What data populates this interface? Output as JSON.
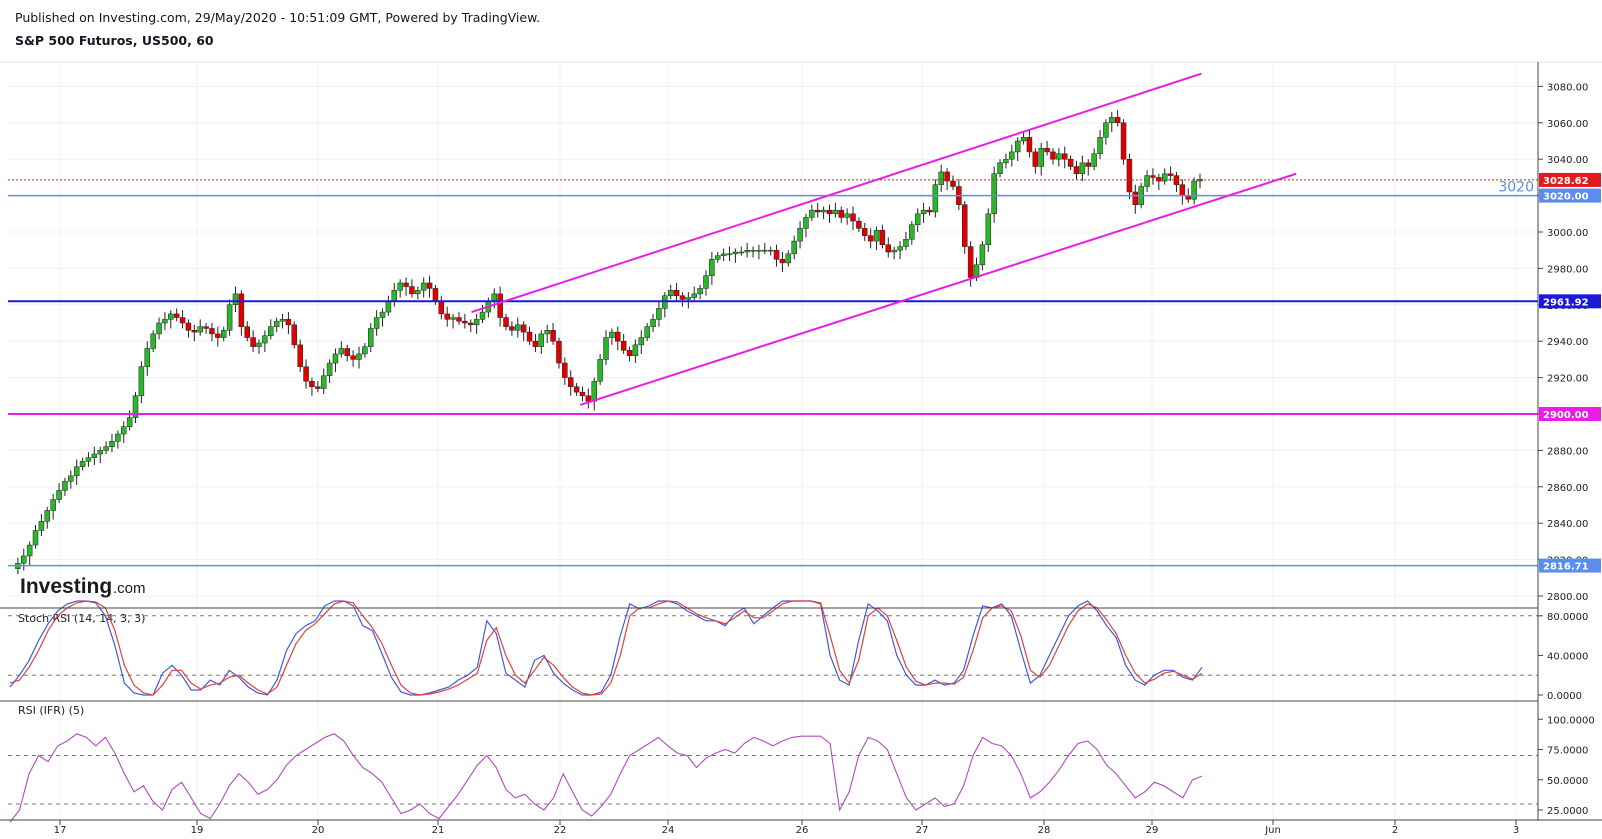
{
  "header": {
    "published": "Published on Investing.com, 29/May/2020 - 10:51:09 GMT, Powered by TradingView.",
    "symbol": "S&P 500 Futuros, US500, 60"
  },
  "logo": {
    "brand": "Investing",
    "suffix": ".com"
  },
  "chart_data": [
    {
      "type": "candlestick",
      "name": "price",
      "x_ticks": [
        "17",
        "19",
        "20",
        "21",
        "22",
        "24",
        "26",
        "27",
        "28",
        "29",
        "Jun",
        "2",
        "3"
      ],
      "y_ticks": [
        "3080.00",
        "3060.00",
        "3040.00",
        "3020.00",
        "3000.00",
        "2980.00",
        "2960.00",
        "2940.00",
        "2920.00",
        "2900.00",
        "2880.00",
        "2860.00",
        "2840.00",
        "2820.00",
        "2800.00"
      ],
      "ylim": [
        2790,
        3100
      ],
      "grid": true,
      "ohlc_path": [
        2815,
        2818,
        2822,
        2828,
        2836,
        2841,
        2847,
        2853,
        2858,
        2863,
        2866,
        2871,
        2874,
        2876,
        2878,
        2880,
        2882,
        2885,
        2889,
        2893,
        2898,
        2910,
        2926,
        2936,
        2944,
        2950,
        2952,
        2955,
        2953,
        2950,
        2946,
        2945,
        2948,
        2947,
        2944,
        2942,
        2946,
        2960,
        2966,
        2948,
        2942,
        2937,
        2939,
        2943,
        2948,
        2951,
        2952,
        2949,
        2938,
        2926,
        2918,
        2915,
        2914,
        2921,
        2928,
        2933,
        2936,
        2932,
        2930,
        2933,
        2937,
        2947,
        2953,
        2956,
        2962,
        2968,
        2972,
        2970,
        2966,
        2968,
        2972,
        2969,
        2962,
        2955,
        2952,
        2953,
        2951,
        2950,
        2949,
        2952,
        2956,
        2962,
        2966,
        2953,
        2948,
        2946,
        2949,
        2945,
        2940,
        2937,
        2944,
        2946,
        2940,
        2928,
        2920,
        2915,
        2912,
        2910,
        2907,
        2918,
        2930,
        2942,
        2945,
        2940,
        2935,
        2932,
        2938,
        2942,
        2948,
        2952,
        2958,
        2965,
        2968,
        2965,
        2963,
        2964,
        2966,
        2969,
        2976,
        2985,
        2987,
        2988,
        2988,
        2989,
        2989,
        2990,
        2990,
        2990,
        2990,
        2990,
        2985,
        2983,
        2988,
        2995,
        3002,
        3008,
        3012,
        3011,
        3012,
        3010,
        3012,
        3008,
        3010,
        3006,
        3002,
        2998,
        2995,
        3001,
        2993,
        2989,
        2990,
        2992,
        2996,
        3004,
        3010,
        3012,
        3011,
        3026,
        3033,
        3028,
        3025,
        3015,
        2992,
        2975,
        2982,
        2993,
        3010,
        3032,
        3038,
        3040,
        3044,
        3050,
        3052,
        3044,
        3036,
        3046,
        3044,
        3040,
        3043,
        3040,
        3036,
        3032,
        3038,
        3036,
        3043,
        3052,
        3060,
        3063,
        3060,
        3040,
        3022,
        3015,
        3025,
        3031,
        3030,
        3028,
        3032,
        3031,
        3026,
        3020,
        3018,
        3028,
        3029
      ],
      "series": [
        {
          "name": "price",
          "last": 3028.62,
          "color": "#d32f2f"
        }
      ],
      "horizontal_levels": [
        {
          "value": 3020.0,
          "label": "3020.00",
          "text": "3020",
          "color": "#5b8def"
        },
        {
          "value": 2961.92,
          "label": "2961.92",
          "color": "#1a1ad8"
        },
        {
          "value": 2900.0,
          "label": "2900.00",
          "color": "#e81ee8"
        },
        {
          "value": 2816.71,
          "label": "2816.71",
          "color": "#5b8def"
        }
      ],
      "current_price": {
        "value": 3028.62,
        "label": "3028.62",
        "color": "#e01b1b"
      },
      "trend_channel": {
        "color": "#e81ee8",
        "upper": [
          [
            0.303,
            2956
          ],
          [
            0.78,
            3087
          ]
        ],
        "lower": [
          [
            0.374,
            2905
          ],
          [
            0.842,
            3032
          ]
        ]
      }
    },
    {
      "type": "line",
      "name": "Stoch RSI (14, 14, 3, 3)",
      "title": "Stoch RSI (14, 14, 3, 3)",
      "y_ticks": [
        "80.0000",
        "40.0000",
        "0.0000"
      ],
      "ylim": [
        -5,
        105
      ],
      "levels": [
        80,
        20
      ],
      "series": [
        {
          "name": "K",
          "color": "#3f5bdc",
          "values": [
            8,
            20,
            35,
            55,
            72,
            85,
            92,
            95,
            95,
            93,
            80,
            50,
            12,
            2,
            0,
            0,
            22,
            30,
            20,
            5,
            5,
            15,
            10,
            25,
            18,
            8,
            2,
            0,
            15,
            45,
            62,
            70,
            75,
            90,
            95,
            95,
            90,
            70,
            65,
            42,
            18,
            3,
            0,
            0,
            2,
            5,
            8,
            15,
            20,
            28,
            75,
            62,
            22,
            15,
            8,
            35,
            40,
            22,
            12,
            5,
            0,
            0,
            3,
            20,
            60,
            92,
            87,
            90,
            95,
            95,
            92,
            85,
            80,
            75,
            75,
            70,
            82,
            88,
            72,
            80,
            88,
            95,
            95,
            95,
            95,
            92,
            40,
            15,
            10,
            55,
            92,
            85,
            75,
            40,
            20,
            10,
            10,
            15,
            10,
            12,
            25,
            60,
            90,
            88,
            92,
            80,
            45,
            12,
            20,
            40,
            60,
            80,
            90,
            95,
            85,
            70,
            58,
            30,
            15,
            10,
            20,
            25,
            25,
            18,
            15,
            28
          ]
        },
        {
          "name": "D",
          "color": "#e2413b",
          "values": [
            12,
            15,
            28,
            45,
            65,
            80,
            88,
            93,
            95,
            94,
            88,
            65,
            30,
            10,
            2,
            0,
            10,
            25,
            25,
            12,
            6,
            10,
            12,
            18,
            20,
            12,
            5,
            1,
            8,
            30,
            52,
            65,
            72,
            82,
            92,
            95,
            93,
            80,
            68,
            52,
            30,
            10,
            2,
            0,
            1,
            3,
            6,
            10,
            16,
            22,
            55,
            68,
            40,
            20,
            12,
            25,
            38,
            30,
            18,
            8,
            2,
            0,
            1,
            12,
            40,
            80,
            88,
            88,
            92,
            95,
            94,
            88,
            82,
            78,
            75,
            72,
            78,
            85,
            78,
            78,
            85,
            92,
            95,
            95,
            95,
            93,
            60,
            25,
            12,
            35,
            80,
            88,
            80,
            55,
            28,
            14,
            10,
            12,
            12,
            11,
            18,
            45,
            78,
            88,
            90,
            85,
            60,
            25,
            18,
            30,
            50,
            70,
            85,
            92,
            88,
            76,
            62,
            40,
            22,
            12,
            16,
            22,
            24,
            20,
            16,
            22
          ]
        }
      ]
    },
    {
      "type": "line",
      "name": "RSI (IFR) (5)",
      "title": "RSI (IFR) (5)",
      "y_ticks": [
        "100.0000",
        "75.0000",
        "50.0000",
        "25.0000"
      ],
      "ylim": [
        10,
        102
      ],
      "levels": [
        70,
        30
      ],
      "series": [
        {
          "name": "RSI",
          "color": "#b04bc0",
          "values": [
            15,
            25,
            55,
            70,
            65,
            78,
            82,
            88,
            85,
            78,
            85,
            72,
            55,
            40,
            45,
            32,
            25,
            42,
            48,
            35,
            22,
            18,
            30,
            45,
            55,
            48,
            38,
            42,
            50,
            62,
            70,
            75,
            80,
            85,
            88,
            82,
            70,
            60,
            55,
            48,
            35,
            22,
            25,
            30,
            22,
            18,
            28,
            38,
            50,
            62,
            70,
            60,
            42,
            35,
            38,
            30,
            25,
            35,
            55,
            40,
            25,
            20,
            28,
            38,
            55,
            70,
            75,
            80,
            85,
            78,
            72,
            70,
            60,
            68,
            72,
            75,
            72,
            80,
            85,
            82,
            78,
            82,
            85,
            86,
            86,
            86,
            80,
            25,
            40,
            70,
            85,
            82,
            75,
            55,
            35,
            25,
            30,
            35,
            28,
            30,
            45,
            70,
            85,
            80,
            78,
            70,
            55,
            35,
            40,
            48,
            58,
            70,
            80,
            82,
            75,
            62,
            55,
            45,
            35,
            40,
            48,
            45,
            40,
            35,
            50,
            53
          ]
        }
      ]
    }
  ]
}
